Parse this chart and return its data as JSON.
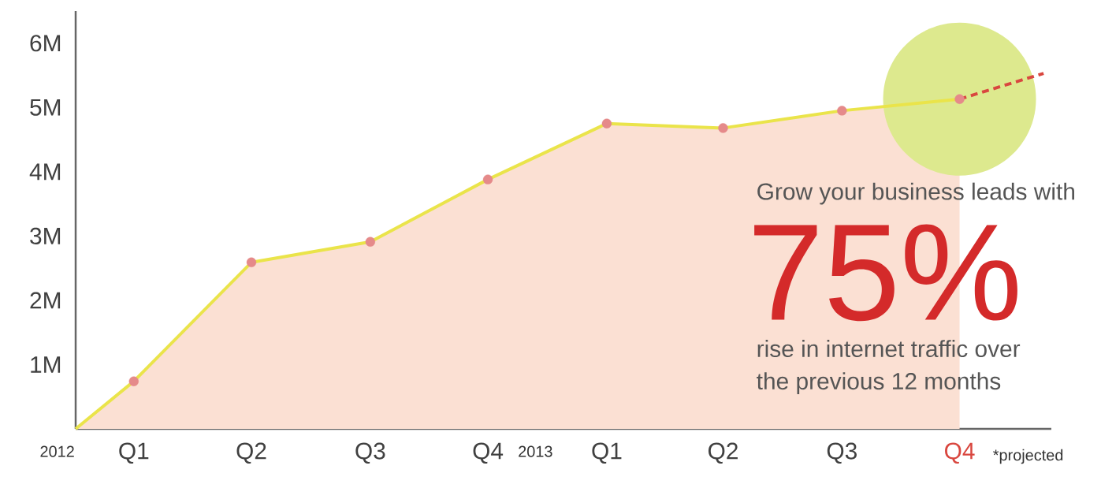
{
  "chart_data": {
    "type": "line",
    "xlim": [
      "2012-01-01",
      "2014-01-25"
    ],
    "ylim": [
      0,
      6.5
    ],
    "xticks": [
      {
        "value": "2012-02-15",
        "label": "Q1"
      },
      {
        "value": "2012-05-16",
        "label": "Q2"
      },
      {
        "value": "2012-08-16",
        "label": "Q3"
      },
      {
        "value": "2012-11-15",
        "label": "Q4"
      },
      {
        "value": "2013-02-15",
        "label": "Q1"
      },
      {
        "value": "2013-05-16",
        "label": "Q2"
      },
      {
        "value": "2013-08-16",
        "label": "Q3"
      },
      {
        "value": "2013-11-15",
        "label": "Q4"
      }
    ],
    "yticks": [
      {
        "value": 1,
        "label": "1M"
      },
      {
        "value": 2,
        "label": "2M"
      },
      {
        "value": 3,
        "label": "3M"
      },
      {
        "value": 4,
        "label": "4M"
      },
      {
        "value": 5,
        "label": "5M"
      },
      {
        "value": 6,
        "label": "6M"
      }
    ],
    "series": [
      {
        "type": "area",
        "color": "#eae44a",
        "x": [
          "2012-01-01",
          "2012-02-15",
          "2012-05-16",
          "2012-08-16",
          "2012-11-15",
          "2013-02-15",
          "2013-05-16",
          "2013-08-16",
          "2013-11-15"
        ],
        "values": [
          0,
          0.74,
          2.59,
          2.91,
          3.88,
          4.75,
          4.68,
          4.95,
          5.13
        ]
      },
      {
        "type": "scatter",
        "color": "#e58a8a",
        "marker": "circle",
        "x": [
          "2012-02-15",
          "2012-05-16",
          "2012-08-16",
          "2012-11-15",
          "2013-02-15",
          "2013-05-16",
          "2013-08-16",
          "2013-11-15"
        ],
        "values": [
          0.74,
          2.59,
          2.91,
          3.88,
          4.75,
          4.68,
          4.95,
          5.13
        ]
      },
      {
        "color": "#d9473f",
        "line_style": "dashed",
        "x": [
          "2013-11-15",
          "2014-01-19"
        ],
        "values": [
          5.13,
          5.53
        ]
      }
    ],
    "annotations": [
      "2012",
      "2013",
      "Grow your business leads with",
      "75%",
      "rise in internet traffic over",
      "the previous 12 months",
      "*projected"
    ]
  }
}
